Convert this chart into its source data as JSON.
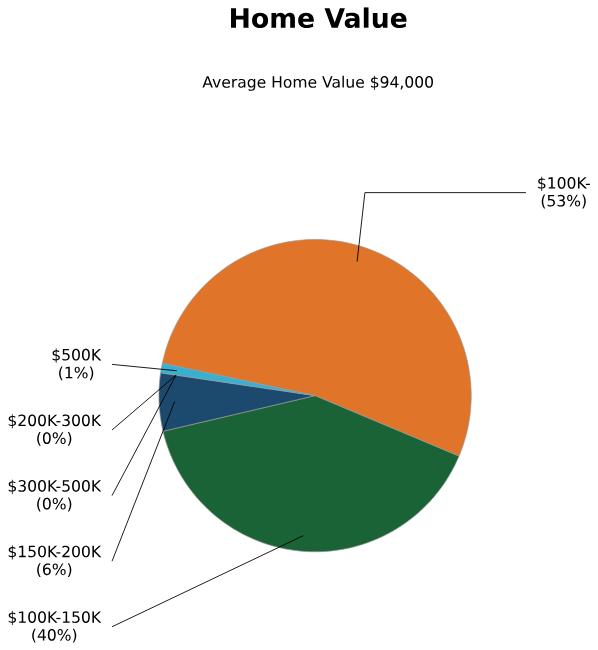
{
  "chart_data": {
    "type": "pie",
    "title": "Home Value",
    "subtitle": "Average Home Value  $94,000",
    "categories": [
      "$100K-",
      "$100K-150K",
      "$150K-200K",
      "$200K-300K",
      "$300K-500K",
      "$500K"
    ],
    "values": [
      53,
      40,
      6,
      0,
      0,
      1
    ],
    "value_labels": [
      "(53%)",
      "(40%)",
      "(6%)",
      "(0%)",
      "(0%)",
      "(1%)"
    ],
    "colors": [
      "#e07428",
      "#1a6336",
      "#1b4a6e",
      "#4a7fa8",
      "#2e8fb8",
      "#3ab0d0"
    ]
  }
}
